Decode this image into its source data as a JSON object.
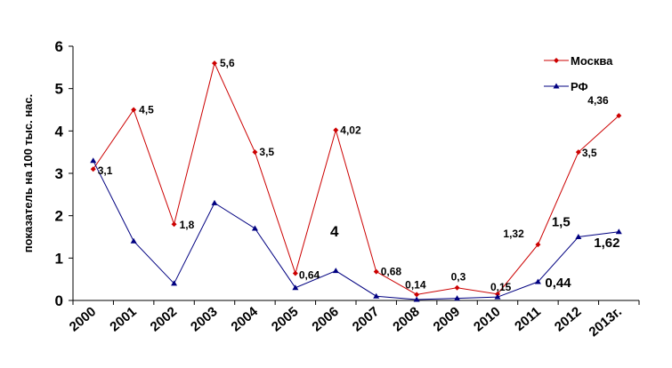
{
  "chart_data": {
    "type": "line",
    "ylabel": "показатель на 100 тыс. нас.",
    "ylim": [
      0,
      6
    ],
    "yticks": [
      "0",
      "1",
      "2",
      "3",
      "4",
      "5",
      "6"
    ],
    "categories": [
      "2000",
      "2001",
      "2002",
      "2003",
      "2004",
      "2005",
      "2006",
      "2007",
      "2008",
      "2009",
      "2010",
      "2011",
      "2012",
      "2013г."
    ],
    "legend_position": "top-right",
    "grid": false,
    "series": [
      {
        "name": "Москва",
        "color": "#cc0000",
        "marker": "diamond",
        "values": [
          3.1,
          4.5,
          1.8,
          5.6,
          3.5,
          0.64,
          4.02,
          0.68,
          0.14,
          0.3,
          0.15,
          1.32,
          3.5,
          4.36
        ],
        "labels": [
          "3,1",
          "4,5",
          "1,8",
          "5,6",
          "3,5",
          "0,64",
          "4,02",
          "0,68",
          "0,14",
          "0,3",
          "0,15",
          "1,32",
          "3,5",
          "4,36"
        ]
      },
      {
        "name": "РФ",
        "color": "#000080",
        "marker": "triangle",
        "values": [
          3.3,
          1.4,
          0.4,
          2.3,
          1.7,
          0.3,
          0.7,
          0.1,
          0.02,
          0.05,
          0.08,
          0.44,
          1.5,
          1.62
        ],
        "labels": [
          "",
          "",
          "",
          "",
          "",
          "",
          "",
          "",
          "",
          "",
          "",
          "0,44",
          "1,5",
          "1,62"
        ]
      }
    ],
    "annotations": [
      {
        "text": "4"
      }
    ]
  }
}
